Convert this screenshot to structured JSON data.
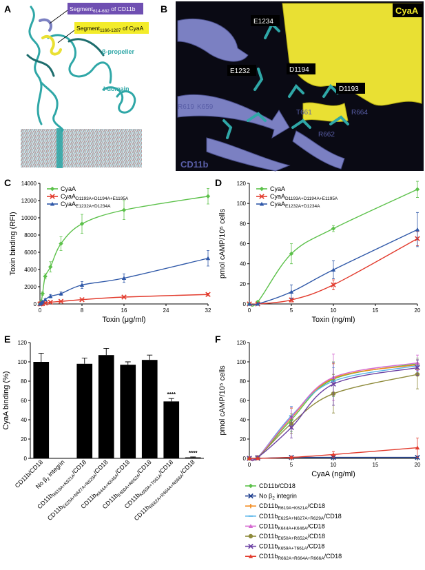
{
  "panels": {
    "A": {
      "letter": "A",
      "callout_cd11b": {
        "pre": "Segment",
        "sub": "614-682",
        "post": " of CD11b"
      },
      "callout_cyaa": {
        "pre": "Segment",
        "sub": "1166-1287",
        "post": " of CyaA"
      },
      "label_propeller": "β-propeller",
      "label_idomain": "I-domain"
    },
    "B": {
      "letter": "B",
      "title_cyaa": "CyaA",
      "title_cd11b": "CD11b",
      "boxed_residues": [
        "E1234",
        "E1232",
        "D1194",
        "D1193"
      ],
      "plain_residues": [
        "R619",
        "K659",
        "T661",
        "R664",
        "R662"
      ]
    }
  },
  "colors": {
    "green": "#5cc14a",
    "red": "#e23a2c",
    "blue": "#2f58a8",
    "orange": "#f28a1e",
    "light_blue": "#56b4e9",
    "pink": "#d56bd1",
    "olive": "#8e8a3b",
    "purple": "#6a3fa2",
    "navy": "#1f3f8f",
    "cd11b_ribbon": "#7b80c2",
    "cyaa_ribbon": "#e9e033",
    "teal": "#2fa7a7"
  },
  "chart_data": [
    {
      "panel": "C",
      "type": "line",
      "xlabel": "Toxin (μg/ml)",
      "ylabel": "Toxin binding (RFI)",
      "xlim": [
        0,
        32
      ],
      "ylim": [
        0,
        14000
      ],
      "xticks": [
        0,
        8,
        16,
        24,
        32
      ],
      "yticks": [
        0,
        2000,
        4000,
        6000,
        8000,
        10000,
        12000,
        14000
      ],
      "legend_position": "top-left",
      "series": [
        {
          "name": "CyaA",
          "name_sub": "",
          "color": "green",
          "marker": "diamond",
          "x": [
            0,
            0.25,
            0.5,
            1,
            2,
            4,
            8,
            16,
            32
          ],
          "y": [
            0,
            300,
            1200,
            3200,
            4300,
            7000,
            9300,
            10900,
            12500
          ],
          "err": [
            0,
            100,
            200,
            300,
            600,
            800,
            1100,
            1100,
            900
          ]
        },
        {
          "name": "CyaA",
          "name_sub": "D1193A+D1194A+E1195A",
          "color": "red",
          "marker": "x",
          "x": [
            0,
            0.25,
            0.5,
            1,
            2,
            4,
            8,
            16,
            32
          ],
          "y": [
            0,
            20,
            50,
            100,
            200,
            300,
            500,
            800,
            1100
          ],
          "err": [
            0,
            10,
            20,
            30,
            50,
            60,
            80,
            100,
            150
          ]
        },
        {
          "name": "CyaA",
          "name_sub": "E1232A+D1234A",
          "color": "blue",
          "marker": "triangle",
          "x": [
            0,
            0.25,
            0.5,
            1,
            2,
            4,
            8,
            16,
            32
          ],
          "y": [
            0,
            100,
            250,
            500,
            900,
            1200,
            2200,
            3000,
            5300
          ],
          "err": [
            0,
            50,
            80,
            100,
            200,
            200,
            400,
            500,
            900
          ]
        }
      ]
    },
    {
      "panel": "D",
      "type": "line",
      "xlabel": "Toxin (ng/ml)",
      "ylabel": "pmol cAMP/10⁵ cells",
      "xlim": [
        0,
        20
      ],
      "ylim": [
        0,
        120
      ],
      "xticks": [
        0,
        5,
        10,
        15,
        20
      ],
      "yticks": [
        0,
        20,
        40,
        60,
        80,
        100,
        120
      ],
      "legend_position": "top-left",
      "series": [
        {
          "name": "CyaA",
          "name_sub": "",
          "color": "green",
          "marker": "diamond",
          "x": [
            0,
            1,
            5,
            10,
            20
          ],
          "y": [
            0,
            2,
            50,
            75,
            114
          ],
          "err": [
            0,
            1,
            10,
            3,
            8
          ]
        },
        {
          "name": "CyaA",
          "name_sub": "D1193A+D1194A+E1195A",
          "color": "red",
          "marker": "x",
          "x": [
            0,
            1,
            5,
            10,
            20
          ],
          "y": [
            0,
            0,
            4,
            19,
            65
          ],
          "err": [
            0,
            0,
            2,
            5,
            7
          ]
        },
        {
          "name": "CyaA",
          "name_sub": "E1232A+D1234A",
          "color": "blue",
          "marker": "triangle",
          "x": [
            0,
            1,
            5,
            10,
            20
          ],
          "y": [
            0,
            0,
            12,
            34,
            74
          ],
          "err": [
            0,
            0,
            7,
            9,
            17
          ]
        }
      ]
    },
    {
      "panel": "E",
      "type": "bar",
      "ylabel": "CyaA binding (%)",
      "ylim": [
        0,
        120
      ],
      "yticks": [
        0,
        20,
        40,
        60,
        80,
        100,
        120
      ],
      "categories": [
        {
          "pre": "CD11b/CD18",
          "sub": "",
          "post": ""
        },
        {
          "pre": "No β",
          "sub": "2",
          "post": " integrin"
        },
        {
          "pre": "CD11b",
          "sub": "R619A+K621A",
          "post": "/CD18"
        },
        {
          "pre": "CD11b",
          "sub": "E625A+N627A+R629A",
          "post": "/CD18"
        },
        {
          "pre": "CD11b",
          "sub": "K644A+K646A",
          "post": "/CD18"
        },
        {
          "pre": "CD11b",
          "sub": "E650A+R652A",
          "post": "/CD18"
        },
        {
          "pre": "CD11b",
          "sub": "K659A+T661A",
          "post": "/CD18"
        },
        {
          "pre": "CD11b",
          "sub": "R662A+R664A+R666A",
          "post": "/CD18"
        }
      ],
      "values": [
        100,
        0,
        98,
        107,
        97,
        102,
        59,
        1
      ],
      "err": [
        9,
        0,
        6,
        7,
        3,
        5,
        3,
        0.5
      ],
      "annotations": [
        "",
        "",
        "",
        "",
        "",
        "",
        "****",
        "****"
      ]
    },
    {
      "panel": "F",
      "type": "line",
      "xlabel": "CyaA (ng/ml)",
      "ylabel": "pmol cAMP/10⁵ cells",
      "xlim": [
        0,
        20
      ],
      "ylim": [
        0,
        120
      ],
      "xticks": [
        0,
        5,
        10,
        15,
        20
      ],
      "yticks": [
        0,
        20,
        40,
        60,
        80,
        100,
        120
      ],
      "legend_position": "below",
      "series": [
        {
          "name": "CD11b/CD18",
          "name_sub": "",
          "name_post": "",
          "color": "green",
          "marker": "diamond",
          "x": [
            0,
            1,
            5,
            10,
            20
          ],
          "y": [
            0,
            1,
            40,
            82,
            98
          ],
          "err": [
            0,
            1,
            12,
            18,
            6
          ]
        },
        {
          "name": "No β",
          "name_sub": "2",
          "name_post": " integrin",
          "color": "navy",
          "marker": "x",
          "x": [
            0,
            1,
            5,
            10,
            20
          ],
          "y": [
            0,
            0,
            1,
            1,
            1
          ],
          "err": [
            0,
            0,
            1,
            1,
            1
          ]
        },
        {
          "name": "CD11b",
          "name_sub": "R619A+K621A",
          "name_post": "/CD18",
          "color": "orange",
          "marker": "plus",
          "x": [
            0,
            1,
            5,
            10,
            20
          ],
          "y": [
            0,
            1,
            42,
            83,
            97
          ],
          "err": [
            0,
            1,
            10,
            15,
            5
          ]
        },
        {
          "name": "CD11b",
          "name_sub": "E625A+N627A+R629A",
          "name_post": "/CD18",
          "color": "light_blue",
          "marker": "dash",
          "x": [
            0,
            1,
            5,
            10,
            20
          ],
          "y": [
            0,
            1,
            44,
            80,
            96
          ],
          "err": [
            0,
            1,
            10,
            14,
            6
          ]
        },
        {
          "name": "CD11b",
          "name_sub": "K644A+K646A",
          "name_post": "/CD18",
          "color": "pink",
          "marker": "triangle",
          "x": [
            0,
            1,
            5,
            10,
            20
          ],
          "y": [
            0,
            1,
            43,
            84,
            99
          ],
          "err": [
            0,
            1,
            10,
            24,
            8
          ]
        },
        {
          "name": "CD11b",
          "name_sub": "E650A+R652A",
          "name_post": "/CD18",
          "color": "olive",
          "marker": "circle",
          "x": [
            0,
            1,
            5,
            10,
            20
          ],
          "y": [
            0,
            1,
            36,
            67,
            87
          ],
          "err": [
            0,
            1,
            10,
            20,
            15
          ]
        },
        {
          "name": "CD11b",
          "name_sub": "K659A+T661A",
          "name_post": "/CD18",
          "color": "purple",
          "marker": "x",
          "x": [
            0,
            1,
            5,
            10,
            20
          ],
          "y": [
            0,
            1,
            32,
            77,
            94
          ],
          "err": [
            0,
            1,
            11,
            22,
            8
          ]
        },
        {
          "name": "CD11b",
          "name_sub": "R662A+R664A+R666A",
          "name_post": "/CD18",
          "color": "red",
          "marker": "triangle",
          "x": [
            0,
            1,
            5,
            10,
            20
          ],
          "y": [
            0,
            0,
            1,
            4,
            11
          ],
          "err": [
            0,
            0,
            1,
            3,
            10
          ]
        }
      ]
    }
  ]
}
